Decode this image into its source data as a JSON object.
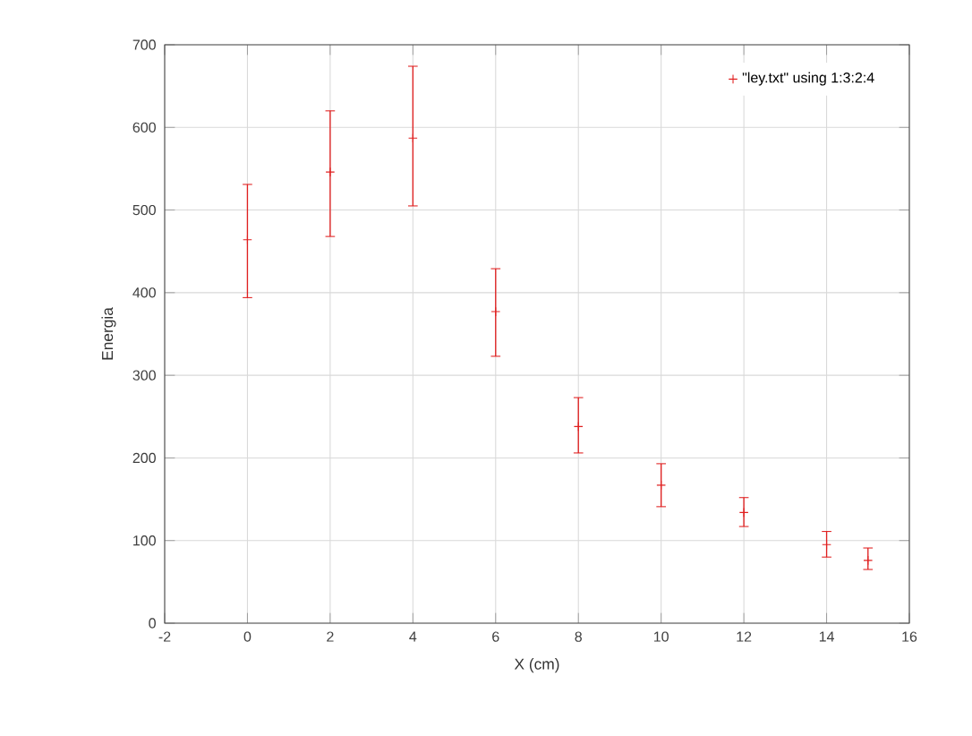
{
  "chart_data": {
    "type": "scatter",
    "xlabel": "X (cm)",
    "ylabel": "Energia",
    "x": [
      0,
      2,
      4,
      6,
      8,
      10,
      12,
      14,
      15
    ],
    "series": [
      {
        "name": "\"ley.txt\" using 1:3:2:4",
        "color": "#e02020",
        "values": [
          464,
          546,
          587,
          377,
          238,
          167,
          134,
          95,
          76
        ],
        "errors": [
          [
            394,
            531
          ],
          [
            468,
            620
          ],
          [
            505,
            674
          ],
          [
            323,
            429
          ],
          [
            206,
            273
          ],
          [
            141,
            193
          ],
          [
            117,
            152
          ],
          [
            80,
            111
          ],
          [
            65,
            91
          ]
        ]
      }
    ],
    "xlim": [
      -2,
      16
    ],
    "xticks": [
      -2,
      0,
      2,
      4,
      6,
      8,
      10,
      12,
      14,
      16
    ],
    "ylim": [
      0,
      700
    ],
    "yticks": [
      0,
      100,
      200,
      300,
      400,
      500,
      600,
      700
    ],
    "grid": true,
    "legend": "top right",
    "marker": "cross"
  }
}
